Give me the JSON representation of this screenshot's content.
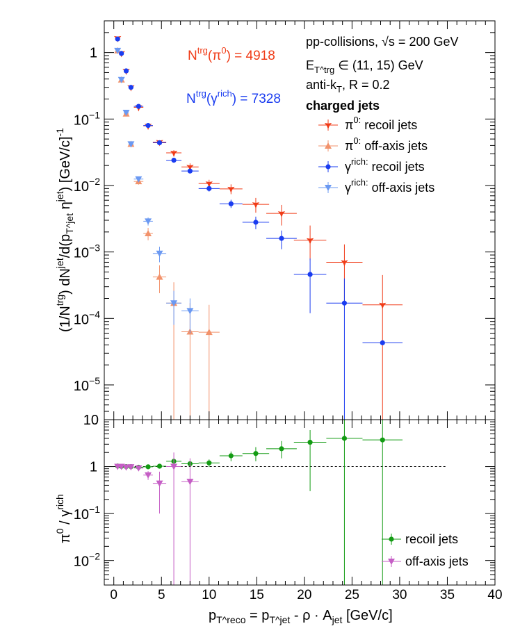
{
  "chart_data": [
    {
      "type": "scatter",
      "panel": "upper",
      "ylabel": "(1/N^trg) dN^jet/d(p_T^jet η^jet) [GeV/c]^-1",
      "yscale": "log",
      "ylim": [
        3e-06,
        3
      ],
      "xlim": [
        -1,
        40
      ],
      "annotations": {
        "n_pi0": "N^trg(π^0) = 4918",
        "n_gamma": "N^trg(γ^rich) = 7328",
        "system": "pp-collisions, √s = 200 GeV",
        "trigger": "E_T^trg ∈ (11, 15) GeV",
        "algo": "anti-k_T, R = 0.2",
        "jets": "charged jets"
      },
      "annotation_colors": {
        "n_pi0": "#f03c18",
        "n_gamma": "#1a3cf0"
      },
      "legend": {
        "placement": "top-right",
        "entries": [
          "π^0: recoil jets",
          "π^0: off-axis jets",
          "γ^rich: recoil jets",
          "γ^rich: off-axis jets"
        ]
      },
      "series": [
        {
          "name": "π^0: recoil jets",
          "color": "#f03c18",
          "marker": "star",
          "points": [
            {
              "x": 0.4,
              "y": 1.65,
              "xerr": 0.2,
              "yerr": [
                1.6,
                1.7
              ]
            },
            {
              "x": 0.8,
              "y": 0.98,
              "xerr": 0.2,
              "yerr": [
                0.94,
                1.02
              ]
            },
            {
              "x": 1.3,
              "y": 0.53,
              "xerr": 0.25,
              "yerr": [
                0.5,
                0.56
              ]
            },
            {
              "x": 1.8,
              "y": 0.3,
              "xerr": 0.25,
              "yerr": [
                0.28,
                0.32
              ]
            },
            {
              "x": 2.6,
              "y": 0.15,
              "xerr": 0.5,
              "yerr": [
                0.14,
                0.16
              ]
            },
            {
              "x": 3.6,
              "y": 0.079,
              "xerr": 0.5,
              "yerr": [
                0.075,
                0.083
              ]
            },
            {
              "x": 4.8,
              "y": 0.045,
              "xerr": 0.7,
              "yerr": [
                0.042,
                0.048
              ]
            },
            {
              "x": 6.3,
              "y": 0.031,
              "xerr": 0.8,
              "yerr": [
                0.028,
                0.034
              ]
            },
            {
              "x": 8.0,
              "y": 0.019,
              "xerr": 0.9,
              "yerr": [
                0.0165,
                0.0215
              ]
            },
            {
              "x": 10.0,
              "y": 0.0107,
              "xerr": 1.1,
              "yerr": [
                0.0092,
                0.0122
              ]
            },
            {
              "x": 12.3,
              "y": 0.0089,
              "xerr": 1.2,
              "yerr": [
                0.0074,
                0.0104
              ]
            },
            {
              "x": 14.9,
              "y": 0.0052,
              "xerr": 1.4,
              "yerr": [
                0.0039,
                0.0065
              ]
            },
            {
              "x": 17.6,
              "y": 0.0038,
              "xerr": 1.6,
              "yerr": [
                0.0025,
                0.0051
              ]
            },
            {
              "x": 20.6,
              "y": 0.0015,
              "xerr": 1.7,
              "yerr": [
                0.00075,
                0.0025
              ]
            },
            {
              "x": 24.2,
              "y": 0.0007,
              "xerr": 1.9,
              "yerr": [
                0.00018,
                0.0013
              ]
            },
            {
              "x": 28.2,
              "y": 0.00016,
              "xerr": 2.1,
              "yerr": [
                3e-06,
                0.00045
              ]
            }
          ]
        },
        {
          "name": "π^0: off-axis jets",
          "color": "#f2926b",
          "marker": "triangle-up",
          "points": [
            {
              "x": 0.4,
              "y": 1.07,
              "xerr": 0.2,
              "yerr": [
                1.03,
                1.11
              ]
            },
            {
              "x": 0.8,
              "y": 0.39,
              "xerr": 0.2,
              "yerr": [
                0.37,
                0.41
              ]
            },
            {
              "x": 1.3,
              "y": 0.12,
              "xerr": 0.25,
              "yerr": [
                0.112,
                0.128
              ]
            },
            {
              "x": 1.8,
              "y": 0.042,
              "xerr": 0.25,
              "yerr": [
                0.038,
                0.046
              ]
            },
            {
              "x": 2.6,
              "y": 0.0115,
              "xerr": 0.5,
              "yerr": [
                0.0103,
                0.0127
              ]
            },
            {
              "x": 3.6,
              "y": 0.0019,
              "xerr": 0.5,
              "yerr": [
                0.0015,
                0.0023
              ]
            },
            {
              "x": 4.8,
              "y": 0.00042,
              "xerr": 0.7,
              "yerr": [
                0.00024,
                0.00063
              ]
            },
            {
              "x": 6.3,
              "y": 0.00017,
              "xerr": 0.8,
              "yerr": [
                3e-06,
                0.00035
              ]
            },
            {
              "x": 8.0,
              "y": 6.3e-05,
              "xerr": 0.9,
              "yerr": [
                3e-06,
                0.00017
              ]
            },
            {
              "x": 10.0,
              "y": 6.2e-05,
              "xerr": 1.1,
              "yerr": [
                3e-06,
                0.00016
              ]
            }
          ]
        },
        {
          "name": "γ^rich: recoil jets",
          "color": "#1a3cf0",
          "marker": "circle",
          "points": [
            {
              "x": 0.4,
              "y": 1.6,
              "xerr": 0.2,
              "yerr": [
                1.55,
                1.65
              ]
            },
            {
              "x": 0.8,
              "y": 0.97,
              "xerr": 0.2,
              "yerr": [
                0.94,
                1.0
              ]
            },
            {
              "x": 1.3,
              "y": 0.53,
              "xerr": 0.25,
              "yerr": [
                0.51,
                0.55
              ]
            },
            {
              "x": 1.8,
              "y": 0.3,
              "xerr": 0.25,
              "yerr": [
                0.29,
                0.31
              ]
            },
            {
              "x": 2.6,
              "y": 0.155,
              "xerr": 0.5,
              "yerr": [
                0.148,
                0.162
              ]
            },
            {
              "x": 3.6,
              "y": 0.08,
              "xerr": 0.5,
              "yerr": [
                0.077,
                0.083
              ]
            },
            {
              "x": 4.8,
              "y": 0.044,
              "xerr": 0.7,
              "yerr": [
                0.042,
                0.046
              ]
            },
            {
              "x": 6.3,
              "y": 0.024,
              "xerr": 0.8,
              "yerr": [
                0.0226,
                0.0254
              ]
            },
            {
              "x": 8.0,
              "y": 0.0165,
              "xerr": 0.9,
              "yerr": [
                0.0153,
                0.0177
              ]
            },
            {
              "x": 10.0,
              "y": 0.009,
              "xerr": 1.1,
              "yerr": [
                0.0081,
                0.0099
              ]
            },
            {
              "x": 12.3,
              "y": 0.0053,
              "xerr": 1.2,
              "yerr": [
                0.0046,
                0.0061
              ]
            },
            {
              "x": 14.9,
              "y": 0.0028,
              "xerr": 1.4,
              "yerr": [
                0.0022,
                0.0034
              ]
            },
            {
              "x": 17.6,
              "y": 0.0016,
              "xerr": 1.6,
              "yerr": [
                0.0011,
                0.0021
              ]
            },
            {
              "x": 20.6,
              "y": 0.00046,
              "xerr": 1.7,
              "yerr": [
                0.00012,
                0.0008
              ]
            },
            {
              "x": 24.2,
              "y": 0.00017,
              "xerr": 1.9,
              "yerr": [
                3e-06,
                0.0004
              ]
            },
            {
              "x": 28.2,
              "y": 4.3e-05,
              "xerr": 2.1,
              "yerr": [
                4.3e-05,
                4.3e-05
              ]
            }
          ]
        },
        {
          "name": "γ^rich: off-axis jets",
          "color": "#6b99f2",
          "marker": "triangle-down",
          "points": [
            {
              "x": 0.4,
              "y": 1.07,
              "xerr": 0.2,
              "yerr": [
                1.03,
                1.11
              ]
            },
            {
              "x": 0.8,
              "y": 0.39,
              "xerr": 0.2,
              "yerr": [
                0.37,
                0.41
              ]
            },
            {
              "x": 1.3,
              "y": 0.125,
              "xerr": 0.25,
              "yerr": [
                0.117,
                0.133
              ]
            },
            {
              "x": 1.8,
              "y": 0.042,
              "xerr": 0.25,
              "yerr": [
                0.039,
                0.045
              ]
            },
            {
              "x": 2.6,
              "y": 0.0125,
              "xerr": 0.5,
              "yerr": [
                0.0114,
                0.0136
              ]
            },
            {
              "x": 3.6,
              "y": 0.0029,
              "xerr": 0.5,
              "yerr": [
                0.0025,
                0.0033
              ]
            },
            {
              "x": 4.8,
              "y": 0.00095,
              "xerr": 0.7,
              "yerr": [
                0.0007,
                0.0012
              ]
            },
            {
              "x": 6.3,
              "y": 0.00017,
              "xerr": 0.8,
              "yerr": [
                8e-05,
                0.00026
              ]
            },
            {
              "x": 8.0,
              "y": 0.00013,
              "xerr": 0.9,
              "yerr": [
                6e-05,
                0.0002
              ]
            }
          ]
        }
      ]
    },
    {
      "type": "scatter",
      "panel": "lower",
      "ylabel": "π^0 / γ^rich",
      "xlabel": "p_T^reco = p_T^jet - ρ · A_jet [GeV/c]",
      "yscale": "log",
      "ylim": [
        0.003,
        10
      ],
      "xlim": [
        -1,
        40
      ],
      "reference_line": {
        "y": 1,
        "x": [
          0,
          35
        ],
        "style": "dashed"
      },
      "legend": {
        "placement": "bottom-right",
        "entries": [
          "recoil jets",
          "off-axis jets"
        ]
      },
      "series": [
        {
          "name": "recoil jets",
          "color": "#139b13",
          "marker": "circle",
          "points": [
            {
              "x": 0.4,
              "y": 1.03,
              "xerr": 0.2,
              "yerr": [
                0.98,
                1.08
              ]
            },
            {
              "x": 0.8,
              "y": 1.01,
              "xerr": 0.2,
              "yerr": [
                0.97,
                1.05
              ]
            },
            {
              "x": 1.3,
              "y": 1.0,
              "xerr": 0.25,
              "yerr": [
                0.95,
                1.05
              ]
            },
            {
              "x": 1.8,
              "y": 1.0,
              "xerr": 0.25,
              "yerr": [
                0.95,
                1.05
              ]
            },
            {
              "x": 2.6,
              "y": 0.97,
              "xerr": 0.5,
              "yerr": [
                0.9,
                1.05
              ]
            },
            {
              "x": 3.6,
              "y": 0.99,
              "xerr": 0.5,
              "yerr": [
                0.92,
                1.07
              ]
            },
            {
              "x": 4.8,
              "y": 1.02,
              "xerr": 0.7,
              "yerr": [
                0.93,
                1.11
              ]
            },
            {
              "x": 6.3,
              "y": 1.3,
              "xerr": 0.8,
              "yerr": [
                1.15,
                1.45
              ]
            },
            {
              "x": 8.0,
              "y": 1.15,
              "xerr": 0.9,
              "yerr": [
                0.98,
                1.32
              ]
            },
            {
              "x": 10.0,
              "y": 1.2,
              "xerr": 1.1,
              "yerr": [
                0.98,
                1.42
              ]
            },
            {
              "x": 12.3,
              "y": 1.7,
              "xerr": 1.2,
              "yerr": [
                1.3,
                2.1
              ]
            },
            {
              "x": 14.9,
              "y": 1.9,
              "xerr": 1.4,
              "yerr": [
                1.3,
                2.6
              ]
            },
            {
              "x": 17.6,
              "y": 2.4,
              "xerr": 1.6,
              "yerr": [
                1.5,
                3.5
              ]
            },
            {
              "x": 20.6,
              "y": 3.3,
              "xerr": 1.7,
              "yerr": [
                0.3,
                6.0
              ]
            },
            {
              "x": 24.2,
              "y": 4.0,
              "xerr": 1.9,
              "yerr": [
                0.003,
                10
              ]
            },
            {
              "x": 28.2,
              "y": 3.7,
              "xerr": 2.1,
              "yerr": [
                0.003,
                10
              ]
            }
          ]
        },
        {
          "name": "off-axis jets",
          "color": "#c55ec5",
          "marker": "triangle-down",
          "points": [
            {
              "x": 0.4,
              "y": 1.0,
              "xerr": 0.2,
              "yerr": [
                0.96,
                1.04
              ]
            },
            {
              "x": 0.8,
              "y": 1.0,
              "xerr": 0.2,
              "yerr": [
                0.95,
                1.05
              ]
            },
            {
              "x": 1.3,
              "y": 0.97,
              "xerr": 0.25,
              "yerr": [
                0.9,
                1.04
              ]
            },
            {
              "x": 1.8,
              "y": 0.98,
              "xerr": 0.25,
              "yerr": [
                0.9,
                1.06
              ]
            },
            {
              "x": 2.6,
              "y": 0.93,
              "xerr": 0.5,
              "yerr": [
                0.84,
                1.02
              ]
            },
            {
              "x": 3.6,
              "y": 0.66,
              "xerr": 0.5,
              "yerr": [
                0.52,
                0.8
              ]
            },
            {
              "x": 4.8,
              "y": 0.44,
              "xerr": 0.7,
              "yerr": [
                0.1,
                0.78
              ]
            },
            {
              "x": 6.3,
              "y": 1.0,
              "xerr": 0.8,
              "yerr": [
                0.003,
                2.0
              ]
            },
            {
              "x": 8.0,
              "y": 0.48,
              "xerr": 0.9,
              "yerr": [
                0.003,
                1.5
              ]
            }
          ]
        }
      ]
    }
  ]
}
